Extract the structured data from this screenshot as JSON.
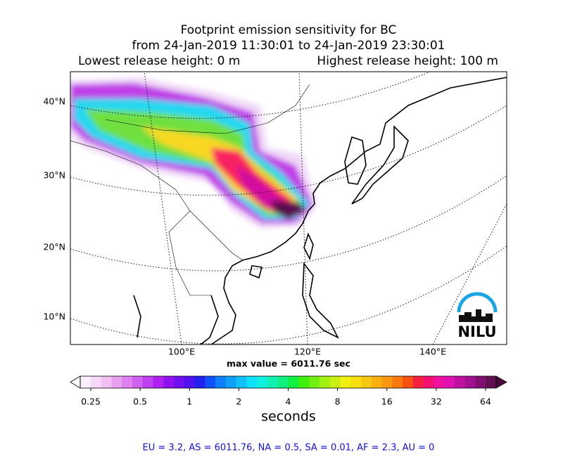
{
  "header": {
    "title": "Footprint emission sensitivity for BC",
    "period": "from 24-Jan-2019 11:30:01 to 24-Jan-2019 23:30:01",
    "lowest": "Lowest release height: 0 m",
    "highest": "Highest release height: 100 m"
  },
  "map": {
    "lat_labels": [
      "40°N",
      "30°N",
      "20°N",
      "10°N"
    ],
    "lon_labels": [
      "100°E",
      "120°E",
      "140°E"
    ],
    "max_value": "max value = 6011.76 sec"
  },
  "colorbar": {
    "ticks": [
      0.25,
      0.5,
      1,
      2,
      4,
      8,
      16,
      32,
      64
    ],
    "lim": [
      0.25,
      64
    ],
    "log": true,
    "label": "seconds"
  },
  "logo": {
    "text": "NILU"
  },
  "footer": "EU = 3.2,  AS = 6011.76,  NA = 0.5,  SA = 0.01,  AF = 2.3,  AU = 0"
}
